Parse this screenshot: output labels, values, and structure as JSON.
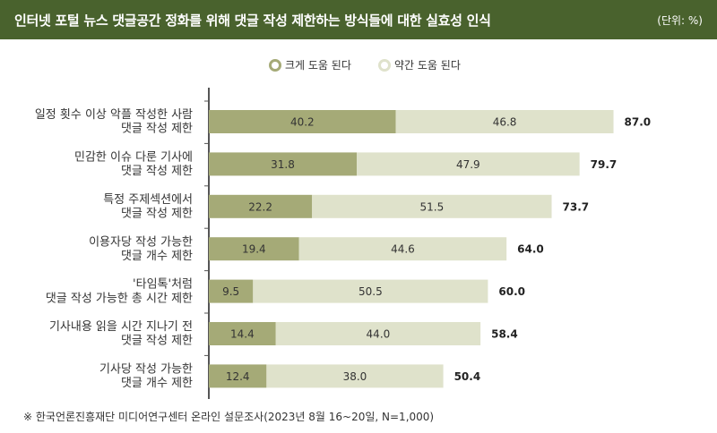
{
  "header": {
    "title": "인터넷 포털 뉴스 댓글공간 정화를 위해 댓글 작성 제한하는 방식들에 대한 실효성 인식",
    "unit": "(단위: %)"
  },
  "colors": {
    "header_bg": "#49622d",
    "strong": "#a5aa77",
    "weak": "#dfe2cb"
  },
  "chart_data": {
    "type": "bar",
    "orientation": "horizontal",
    "stacked": true,
    "categories": [
      [
        "일정 횟수 이상 악플 작성한 사람",
        "댓글 작성 제한"
      ],
      [
        "민감한 이슈 다룬 기사에",
        "댓글 작성 제한"
      ],
      [
        "특정 주제섹션에서",
        "댓글 작성 제한"
      ],
      [
        "이용자당 작성 가능한",
        "댓글 개수 제한"
      ],
      [
        "'타임톡'처럼",
        "댓글 작성 가능한 총 시간 제한"
      ],
      [
        "기사내용 읽을 시간 지나기 전",
        "댓글 작성 제한"
      ],
      [
        "기사당 작성 가능한",
        "댓글 개수 제한"
      ]
    ],
    "series": [
      {
        "name": "크게 도움 된다",
        "values": [
          40.2,
          31.8,
          22.2,
          19.4,
          9.5,
          14.4,
          12.4
        ]
      },
      {
        "name": "약간 도움 된다",
        "values": [
          46.8,
          47.9,
          51.5,
          44.6,
          50.5,
          44.0,
          38.0
        ]
      }
    ],
    "totals": [
      87.0,
      79.7,
      73.7,
      64.0,
      60.0,
      58.4,
      50.4
    ],
    "legend_position": "top-center"
  },
  "footnote": "※ 한국언론진흥재단 미디어연구센터 온라인 설문조사(2023년 8월 16~20일, N=1,000)"
}
